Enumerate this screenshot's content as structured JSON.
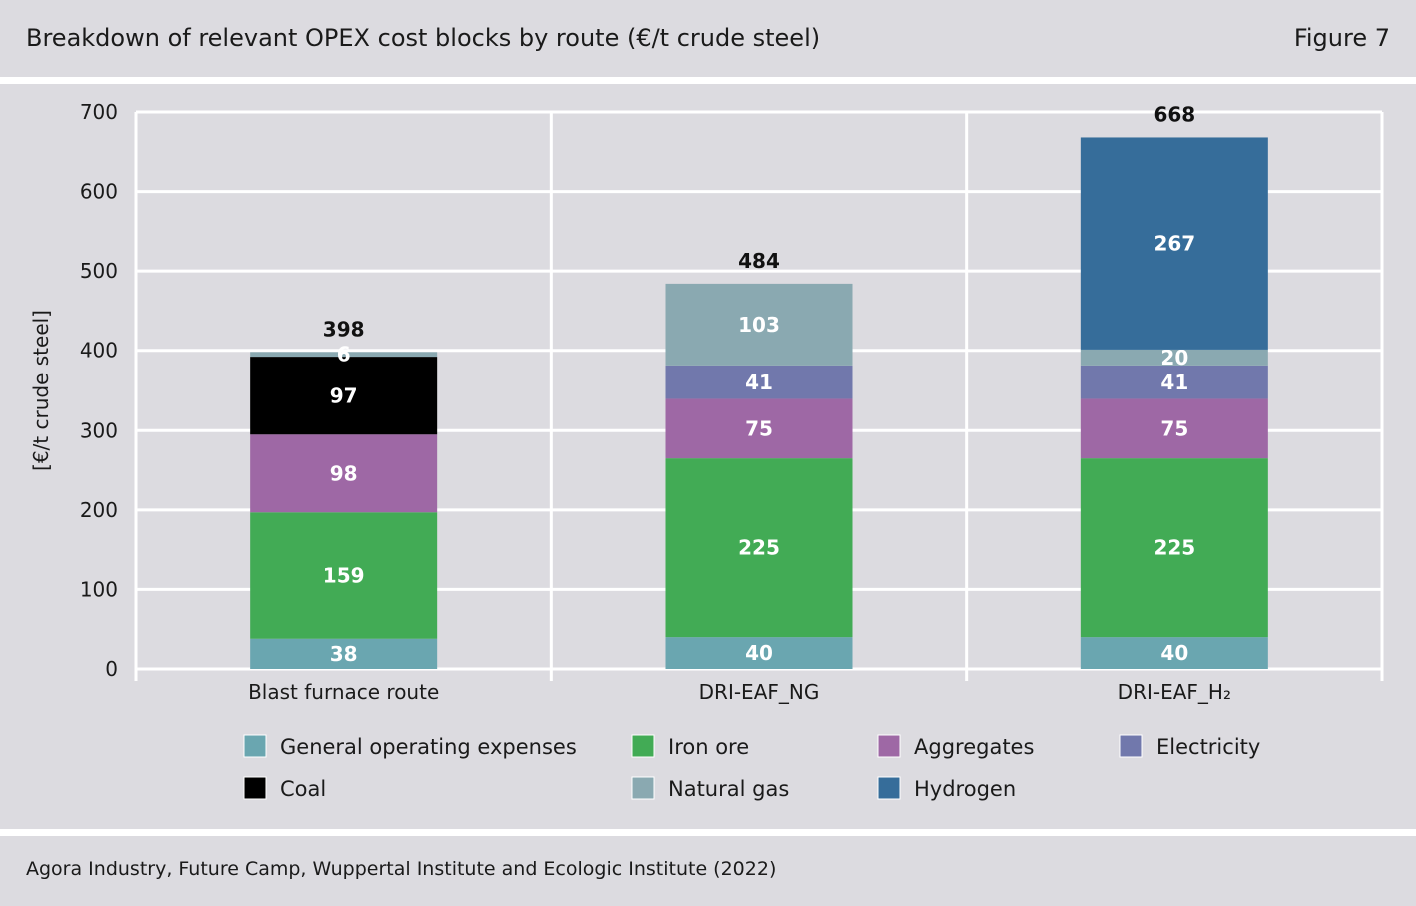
{
  "header": {
    "title": "Breakdown of relevant OPEX cost blocks by route (€/t crude steel)",
    "figure_label": "Figure 7"
  },
  "footer": {
    "source": "Agora Industry, Future Camp, Wuppertal Institute and Ecologic Institute (2022)"
  },
  "chart_data": {
    "type": "bar",
    "stacked": true,
    "categories": [
      "Blast furnace route",
      "DRI-EAF_NG",
      "DRI-EAF_H₂"
    ],
    "ylabel": "[€/t crude steel]",
    "xlabel": "",
    "ylim": [
      0,
      700
    ],
    "yticks": [
      0,
      100,
      200,
      300,
      400,
      500,
      600,
      700
    ],
    "grid": true,
    "legend_position": "bottom",
    "totals": [
      398,
      484,
      668
    ],
    "series": [
      {
        "name": "General operating expenses",
        "color": "#6aa6b0",
        "values": [
          38,
          40,
          40
        ]
      },
      {
        "name": "Iron ore",
        "color": "#42ab55",
        "values": [
          159,
          225,
          225
        ]
      },
      {
        "name": "Aggregates",
        "color": "#9e68a5",
        "values": [
          98,
          75,
          75
        ]
      },
      {
        "name": "Electricity",
        "color": "#7178ac",
        "values": [
          0,
          41,
          41
        ]
      },
      {
        "name": "Coal",
        "color": "#000000",
        "values": [
          97,
          0,
          0
        ]
      },
      {
        "name": "Natural gas",
        "color": "#8aa9b1",
        "values": [
          6,
          103,
          20
        ]
      },
      {
        "name": "Hydrogen",
        "color": "#366d9a",
        "values": [
          0,
          0,
          267
        ]
      }
    ]
  }
}
